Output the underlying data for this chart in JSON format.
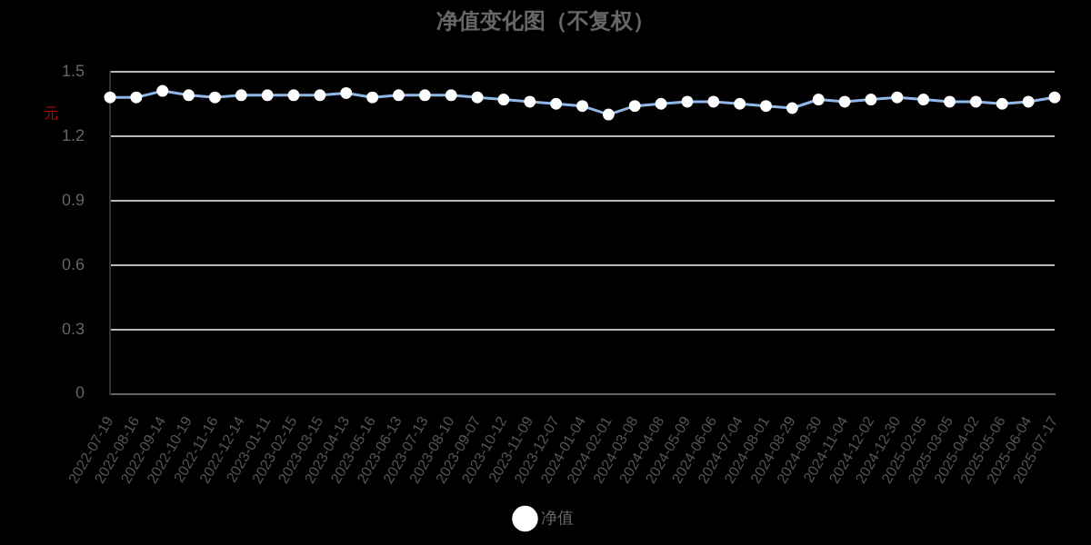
{
  "chart_data": {
    "type": "line",
    "title": "净值变化图（不复权）",
    "ylabel": "元",
    "categories": [
      "2022-07-19",
      "2022-08-16",
      "2022-09-14",
      "2022-10-19",
      "2022-11-16",
      "2022-12-14",
      "2023-01-11",
      "2023-02-15",
      "2023-03-15",
      "2023-04-13",
      "2023-05-16",
      "2023-06-13",
      "2023-07-13",
      "2023-08-10",
      "2023-09-07",
      "2023-10-12",
      "2023-11-09",
      "2023-12-07",
      "2024-01-04",
      "2024-02-01",
      "2024-03-08",
      "2024-04-08",
      "2024-05-09",
      "2024-06-06",
      "2024-07-04",
      "2024-08-01",
      "2024-08-29",
      "2024-09-30",
      "2024-11-04",
      "2024-12-02",
      "2024-12-30",
      "2025-02-05",
      "2025-03-05",
      "2025-04-02",
      "2025-05-06",
      "2025-06-04",
      "2025-07-17"
    ],
    "series": [
      {
        "name": "净值",
        "color": "#8fb8e8",
        "values": [
          1.38,
          1.38,
          1.41,
          1.39,
          1.38,
          1.39,
          1.39,
          1.39,
          1.39,
          1.4,
          1.38,
          1.39,
          1.39,
          1.39,
          1.38,
          1.37,
          1.36,
          1.35,
          1.34,
          1.3,
          1.34,
          1.35,
          1.36,
          1.36,
          1.35,
          1.34,
          1.33,
          1.37,
          1.36,
          1.37,
          1.38,
          1.37,
          1.36,
          1.36,
          1.35,
          1.36,
          1.38
        ]
      }
    ],
    "ylim": [
      0,
      1.5
    ],
    "yticks": [
      0,
      0.3,
      0.6,
      0.9,
      1.2,
      1.5
    ],
    "grid": "y",
    "legend": "bottom",
    "marker": "circle",
    "line_style": "solid"
  }
}
